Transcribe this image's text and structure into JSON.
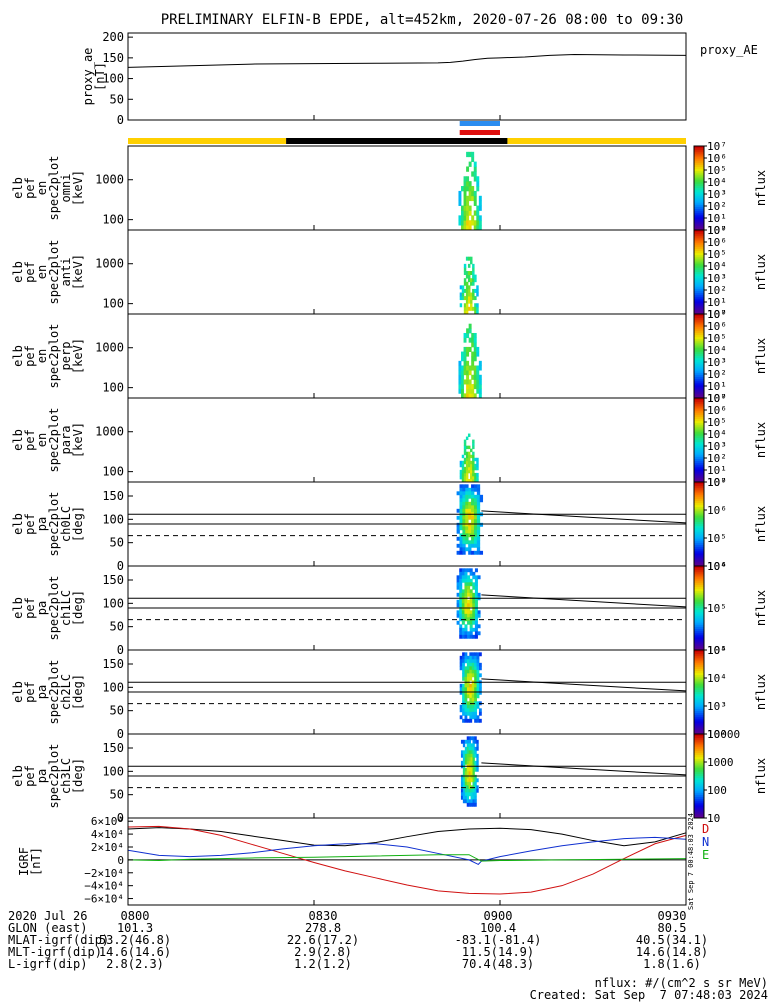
{
  "title": "PRELIMINARY ELFIN-B EPDE, alt=452km, 2020-07-26 08:00 to 09:30",
  "colors": {
    "yellow": "#ffd000",
    "black": "#000000",
    "blue_bar": "#2a8cf0",
    "red_bar": "#e01010",
    "D": "#d01010",
    "N": "#1030d0",
    "E": "#10b010"
  },
  "time": {
    "start": 0,
    "end": 90,
    "ticks": [
      0,
      30,
      60,
      90
    ],
    "labels": [
      "0800",
      "0830",
      "0900",
      "0930"
    ]
  },
  "bars": {
    "segments": [
      {
        "start": 0,
        "end": 25.5,
        "color": "yellow"
      },
      {
        "start": 25.5,
        "end": 61.2,
        "color": "black"
      },
      {
        "start": 61.2,
        "end": 90,
        "color": "yellow"
      }
    ],
    "science_blue": [
      53.5,
      60
    ],
    "science_red": [
      53.5,
      60
    ]
  },
  "chart_data": [
    {
      "type": "line",
      "name": "proxy_ae",
      "ylabel": [
        "proxy_ae",
        "[nT]"
      ],
      "right_label": "proxy_AE",
      "ylim": [
        0,
        210
      ],
      "yticks": [
        0,
        50,
        100,
        150,
        200
      ],
      "ytick_labels": [
        "0",
        "50",
        "100",
        "150",
        "200"
      ],
      "x": [
        0,
        10,
        20,
        30,
        40,
        50,
        52,
        54,
        56,
        58,
        60,
        64,
        68,
        72,
        80,
        90
      ],
      "y": [
        127,
        131,
        135,
        136,
        137,
        138,
        139,
        142,
        146,
        149,
        150,
        152,
        156,
        158,
        157,
        156
      ]
    },
    {
      "type": "heatmap",
      "name": "energy-omni",
      "ylabel": [
        "elb",
        "pef",
        "en",
        "spec2plot",
        "omni",
        "[keV]"
      ],
      "scale": "log",
      "ylim": [
        55,
        7000
      ],
      "yticks": [
        100,
        1000
      ],
      "ytick_labels": [
        "100",
        "1000"
      ],
      "colorbar": {
        "ticks": [
          "10⁰",
          "10¹",
          "10²",
          "10³",
          "10⁴",
          "10⁵",
          "10⁶",
          "10⁷"
        ],
        "label": "nflux"
      },
      "data_window": [
        53.3,
        57.0
      ],
      "data_top_keV": 5000
    },
    {
      "type": "heatmap",
      "name": "energy-anti",
      "ylabel": [
        "elb",
        "pef",
        "en",
        "spec2plot",
        "anti",
        "[keV]"
      ],
      "scale": "log",
      "ylim": [
        55,
        7000
      ],
      "yticks": [
        100,
        1000
      ],
      "ytick_labels": [
        "100",
        "1000"
      ],
      "colorbar": {
        "ticks": [
          "10⁰",
          "10¹",
          "10²",
          "10³",
          "10⁴",
          "10⁵",
          "10⁶",
          "10⁷"
        ],
        "label": "nflux"
      },
      "data_window": [
        53.5,
        56.5
      ],
      "data_top_keV": 1500
    },
    {
      "type": "heatmap",
      "name": "energy-perp",
      "ylabel": [
        "elb",
        "pef",
        "en",
        "spec2plot",
        "perp",
        "[keV]"
      ],
      "scale": "log",
      "ylim": [
        55,
        7000
      ],
      "yticks": [
        100,
        1000
      ],
      "ytick_labels": [
        "100",
        "1000"
      ],
      "colorbar": {
        "ticks": [
          "10⁰",
          "10¹",
          "10²",
          "10³",
          "10⁴",
          "10⁵",
          "10⁶",
          "10⁷"
        ],
        "label": "nflux"
      },
      "data_window": [
        53.3,
        57.0
      ],
      "data_top_keV": 4000
    },
    {
      "type": "heatmap",
      "name": "energy-para",
      "ylabel": [
        "elb",
        "pef",
        "en",
        "spec2plot",
        "para",
        "[keV]"
      ],
      "scale": "log",
      "ylim": [
        55,
        7000
      ],
      "yticks": [
        100,
        1000
      ],
      "ytick_labels": [
        "100",
        "1000"
      ],
      "colorbar": {
        "ticks": [
          "10⁰",
          "10¹",
          "10²",
          "10³",
          "10⁴",
          "10⁵",
          "10⁶",
          "10⁷"
        ],
        "label": "nflux"
      },
      "data_window": [
        53.5,
        56.5
      ],
      "data_top_keV": 900
    },
    {
      "type": "heatmap",
      "name": "pitch-ch0LC",
      "ylabel": [
        "elb",
        "pef",
        "pa",
        "spec2plot",
        "ch0LC",
        "[deg]"
      ],
      "scale": "linear",
      "ylim": [
        0,
        180
      ],
      "yticks": [
        0,
        50,
        100,
        150
      ],
      "ytick_labels": [
        "0",
        "50",
        "100",
        "150"
      ],
      "colorbar": {
        "ticks": [
          "10⁴",
          "10⁵",
          "10⁶",
          "10⁷"
        ],
        "label": "nflux"
      },
      "data_window": [
        53.0,
        57.2
      ],
      "lines": {
        "solid1": [
          111,
          118
        ],
        "solid2": [
          90,
          90
        ],
        "dashed": [
          65,
          65
        ]
      }
    },
    {
      "type": "heatmap",
      "name": "pitch-ch1LC",
      "ylabel": [
        "elb",
        "pef",
        "pa",
        "spec2plot",
        "ch1LC",
        "[deg]"
      ],
      "scale": "linear",
      "ylim": [
        0,
        180
      ],
      "yticks": [
        0,
        50,
        100,
        150
      ],
      "ytick_labels": [
        "0",
        "50",
        "100",
        "150"
      ],
      "colorbar": {
        "ticks": [
          "10⁴",
          "10⁵",
          "10⁶"
        ],
        "label": "nflux"
      },
      "data_window": [
        53.0,
        56.8
      ],
      "lines": {
        "solid1": [
          111,
          118
        ],
        "solid2": [
          90,
          90
        ],
        "dashed": [
          65,
          65
        ]
      }
    },
    {
      "type": "heatmap",
      "name": "pitch-ch2LC",
      "ylabel": [
        "elb",
        "pef",
        "pa",
        "spec2plot",
        "ch2LC",
        "[deg]"
      ],
      "scale": "linear",
      "ylim": [
        0,
        180
      ],
      "yticks": [
        0,
        50,
        100,
        150
      ],
      "ytick_labels": [
        "0",
        "50",
        "100",
        "150"
      ],
      "colorbar": {
        "ticks": [
          "10²",
          "10³",
          "10⁴",
          "10⁵"
        ],
        "label": "nflux"
      },
      "data_window": [
        53.5,
        57.0
      ],
      "lines": {
        "solid1": [
          111,
          118
        ],
        "solid2": [
          90,
          90
        ],
        "dashed": [
          65,
          65
        ]
      }
    },
    {
      "type": "heatmap",
      "name": "pitch-ch3LC",
      "ylabel": [
        "elb",
        "pef",
        "pa",
        "spec2plot",
        "ch3LC",
        "[deg]"
      ],
      "scale": "linear",
      "ylim": [
        0,
        180
      ],
      "yticks": [
        0,
        50,
        100,
        150
      ],
      "ytick_labels": [
        "0",
        "50",
        "100",
        "150"
      ],
      "colorbar": {
        "ticks": [
          "10",
          "100",
          "1000",
          "10000"
        ],
        "label": "nflux"
      },
      "data_window": [
        53.7,
        56.5
      ],
      "lines": {
        "solid1": [
          111,
          118
        ],
        "solid2": [
          90,
          90
        ],
        "dashed": [
          65,
          65
        ]
      }
    },
    {
      "type": "line",
      "name": "igrf",
      "ylabel": [
        "IGRF",
        "[nT]"
      ],
      "ylim": [
        -70000,
        65000
      ],
      "yticks": [
        -60000,
        -40000,
        -20000,
        0,
        20000,
        40000,
        60000
      ],
      "ytick_labels": [
        "−6×10⁴",
        "−4×10⁴",
        "−2×10⁴",
        "0",
        "2×10⁴",
        "4×10⁴",
        "6×10⁴"
      ],
      "legend": [
        "D",
        "N",
        "E"
      ],
      "side_text": "Sat Sep  7 00:48:03 2024",
      "series": [
        {
          "name": "black",
          "x": [
            0,
            5,
            10,
            15,
            20,
            25,
            30,
            35,
            40,
            45,
            50,
            55,
            60,
            65,
            70,
            75,
            80,
            85,
            90
          ],
          "y": [
            48000,
            50000,
            48000,
            44000,
            37000,
            30000,
            23000,
            22000,
            27000,
            36000,
            44000,
            48000,
            49000,
            47000,
            40000,
            30000,
            22000,
            28000,
            42000
          ]
        },
        {
          "name": "D",
          "x": [
            0,
            5,
            10,
            15,
            20,
            25,
            30,
            35,
            40,
            45,
            50,
            55,
            60,
            65,
            70,
            75,
            80,
            85,
            90
          ],
          "y": [
            51000,
            52000,
            48000,
            38000,
            24000,
            10000,
            -4000,
            -17000,
            -28000,
            -39000,
            -48000,
            -52000,
            -53000,
            -50000,
            -40000,
            -22000,
            2000,
            25000,
            38000
          ]
        },
        {
          "name": "N",
          "x": [
            0,
            5,
            10,
            15,
            20,
            25,
            30,
            35,
            40,
            45,
            50,
            55,
            56.5,
            57,
            60,
            65,
            70,
            75,
            80,
            85,
            90
          ],
          "y": [
            15000,
            7000,
            5000,
            7000,
            11000,
            17000,
            22000,
            25000,
            25000,
            20000,
            10000,
            0,
            -7000,
            -2000,
            5000,
            14000,
            22000,
            28000,
            33000,
            35000,
            32000
          ]
        },
        {
          "name": "E",
          "x": [
            0,
            5,
            10,
            20,
            30,
            40,
            50,
            55,
            57,
            60,
            70,
            80,
            90
          ],
          "y": [
            0,
            -1000,
            1000,
            3000,
            4000,
            6000,
            8000,
            8000,
            -2000,
            -1000,
            0,
            1000,
            2000
          ]
        }
      ]
    }
  ],
  "footer": {
    "rows": [
      {
        "label": "2020 Jul 26",
        "values": [
          "0800",
          "0830",
          "0900",
          "0930"
        ]
      },
      {
        "label": "GLON (east)",
        "values": [
          "101.3",
          "278.8",
          "100.4",
          "80.5"
        ]
      },
      {
        "label": "MLAT-igrf(dip)",
        "values": [
          "53.2(46.8)",
          "22.6(17.2)",
          "-83.1(-81.4)",
          "40.5(34.1)"
        ]
      },
      {
        "label": "MLT-igrf(dip)",
        "values": [
          "14.6(14.6)",
          "2.9(2.8)",
          "11.5(14.9)",
          "14.6(14.8)"
        ]
      },
      {
        "label": "L-igrf(dip)",
        "values": [
          "2.8(2.3)",
          "1.2(1.2)",
          "70.4(48.3)",
          "1.8(1.6)"
        ]
      }
    ],
    "units_note": "nflux: #/(cm^2 s sr MeV)",
    "created": "Created: Sat Sep  7 07:48:03 2024"
  }
}
